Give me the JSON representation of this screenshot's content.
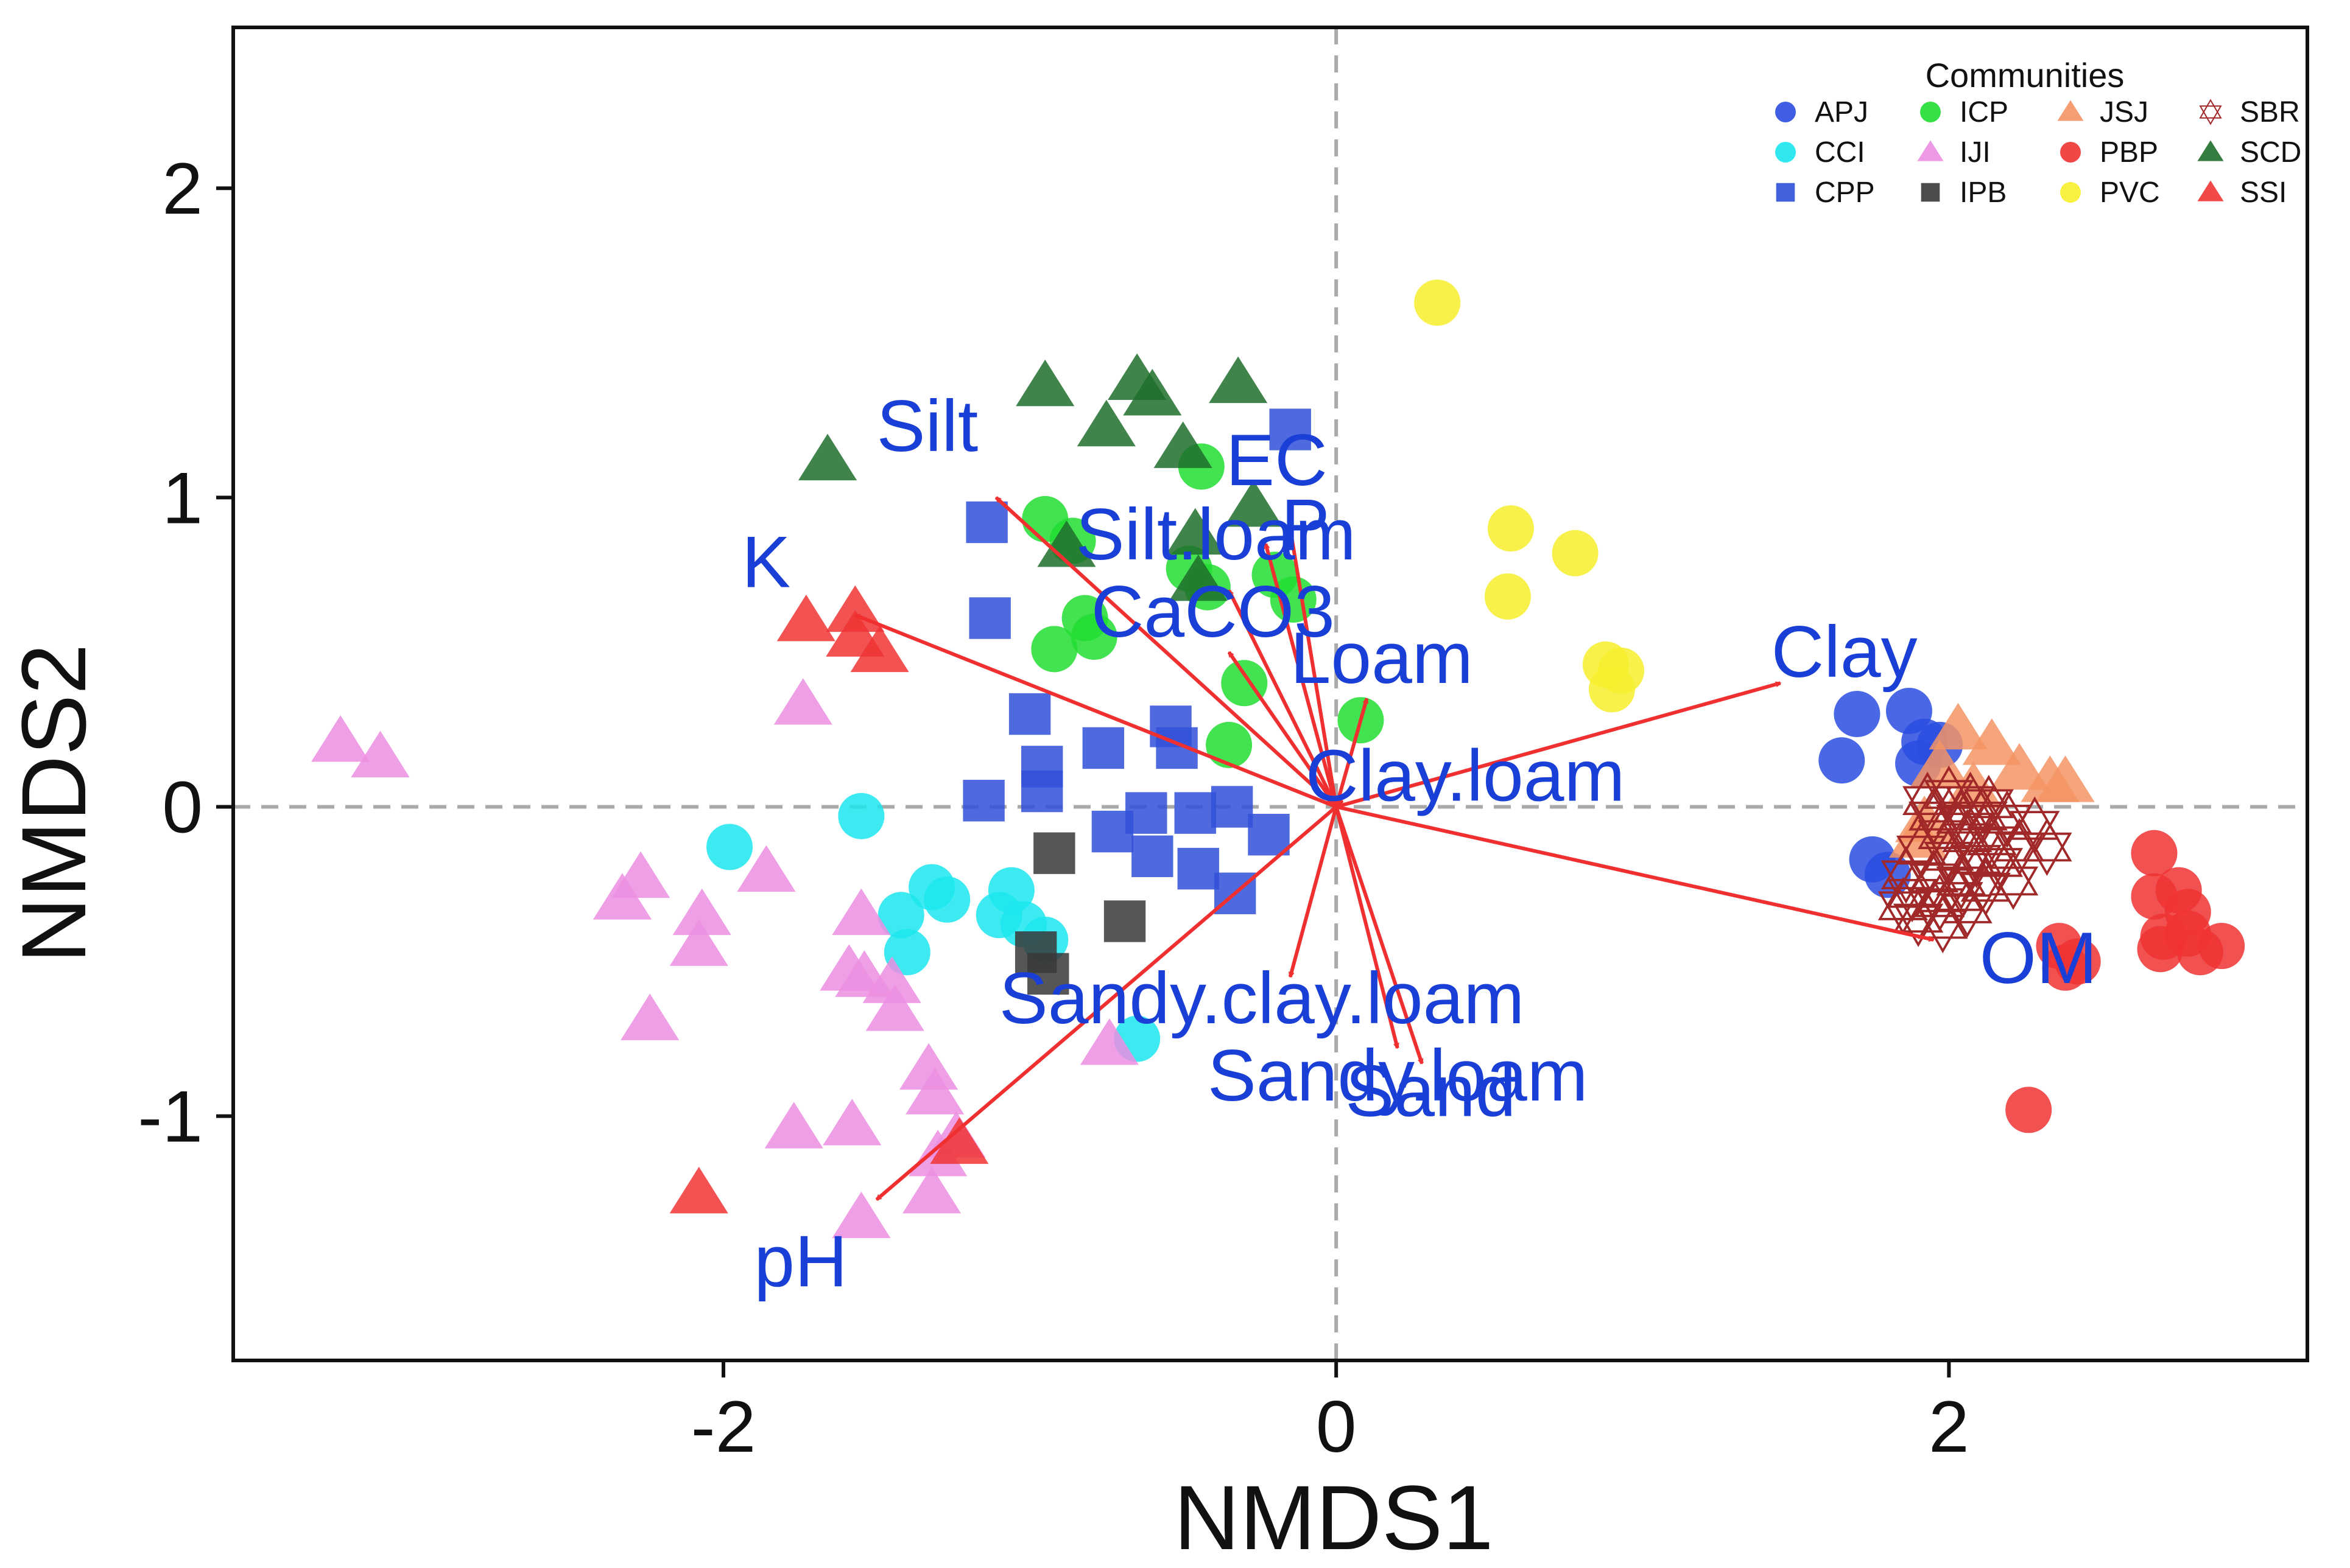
{
  "chart_data": {
    "type": "scatter",
    "subtype": "nmds-biplot",
    "xlabel": "NMDS1",
    "ylabel": "NMDS2",
    "xlim": [
      -3.6,
      3.17
    ],
    "ylim": [
      -1.79,
      2.52
    ],
    "xticks": [
      -2,
      0,
      2
    ],
    "yticks": [
      -1,
      0,
      1,
      2
    ],
    "x_tick_labels": [
      "-2",
      "0",
      "2"
    ],
    "y_tick_labels": [
      "-1",
      "0",
      "1",
      "2"
    ],
    "reference_lines": {
      "x": 0,
      "y": 0,
      "style": "dashed",
      "color": "#aaaaaa"
    },
    "grid": false,
    "legend": {
      "title": "Communities",
      "position": "top-right",
      "columns": [
        [
          "APJ",
          "CCI",
          "CPP"
        ],
        [
          "ICP",
          "IJI",
          "IPB"
        ],
        [
          "JSJ",
          "PBP",
          "PVC"
        ],
        [
          "SBR",
          "SCD",
          "SSI"
        ]
      ]
    },
    "colors": {
      "vector": "#f03030",
      "vector_label": "#1a3fd6",
      "axis_dashed": "#aaaaaa"
    },
    "series": [
      {
        "name": "APJ",
        "shape": "circle",
        "color": "#2a4de0",
        "points": [
          [
            1.7,
            0.3
          ],
          [
            1.87,
            0.31
          ],
          [
            1.65,
            0.15
          ],
          [
            1.92,
            0.21
          ],
          [
            1.97,
            0.2
          ],
          [
            1.9,
            0.14
          ],
          [
            1.75,
            -0.17
          ],
          [
            1.8,
            -0.22
          ]
        ]
      },
      {
        "name": "CCI",
        "shape": "circle",
        "color": "#1ce6ee",
        "points": [
          [
            -1.98,
            -0.13
          ],
          [
            -1.55,
            -0.03
          ],
          [
            -1.42,
            -0.35
          ],
          [
            -1.4,
            -0.47
          ],
          [
            -1.32,
            -0.26
          ],
          [
            -1.27,
            -0.3
          ],
          [
            -1.06,
            -0.27
          ],
          [
            -1.1,
            -0.35
          ],
          [
            -1.02,
            -0.38
          ],
          [
            -0.95,
            -0.43
          ],
          [
            -0.65,
            -0.75
          ]
        ]
      },
      {
        "name": "CPP",
        "shape": "square",
        "color": "#3050d8",
        "points": [
          [
            -0.15,
            1.22
          ],
          [
            -1.14,
            0.92
          ],
          [
            -1.13,
            0.61
          ],
          [
            -1,
            0.3
          ],
          [
            -0.96,
            0.13
          ],
          [
            -0.76,
            0.19
          ],
          [
            -0.54,
            0.26
          ],
          [
            -0.52,
            0.19
          ],
          [
            -1.15,
            0.02
          ],
          [
            -0.96,
            0.05
          ],
          [
            -0.73,
            -0.08
          ],
          [
            -0.62,
            -0.02
          ],
          [
            -0.46,
            -0.02
          ],
          [
            -0.34,
            0
          ],
          [
            -0.6,
            -0.16
          ],
          [
            -0.45,
            -0.2
          ],
          [
            -0.22,
            -0.09
          ],
          [
            -0.33,
            -0.28
          ]
        ]
      },
      {
        "name": "ICP",
        "shape": "circle",
        "color": "#22dd33",
        "points": [
          [
            -0.44,
            1.1
          ],
          [
            -0.95,
            0.93
          ],
          [
            -0.86,
            0.86
          ],
          [
            -0.48,
            0.77
          ],
          [
            -0.42,
            0.71
          ],
          [
            -0.82,
            0.61
          ],
          [
            -0.79,
            0.55
          ],
          [
            -0.92,
            0.51
          ],
          [
            -0.2,
            0.75
          ],
          [
            -0.14,
            0.67
          ],
          [
            -0.3,
            0.4
          ],
          [
            -0.35,
            0.2
          ],
          [
            0.08,
            0.28
          ]
        ]
      },
      {
        "name": "IJI",
        "shape": "triangle",
        "color": "#ec8ee2",
        "points": [
          [
            -3.25,
            0.21
          ],
          [
            -3.12,
            0.16
          ],
          [
            -1.74,
            0.33
          ],
          [
            -2.27,
            -0.23
          ],
          [
            -2.33,
            -0.3
          ],
          [
            -2.07,
            -0.35
          ],
          [
            -2.08,
            -0.45
          ],
          [
            -1.86,
            -0.21
          ],
          [
            -1.55,
            -0.35
          ],
          [
            -1.59,
            -0.53
          ],
          [
            -1.54,
            -0.55
          ],
          [
            -1.45,
            -0.57
          ],
          [
            -1.44,
            -0.66
          ],
          [
            -2.24,
            -0.69
          ],
          [
            -1.33,
            -0.85
          ],
          [
            -1.31,
            -0.93
          ],
          [
            -1.77,
            -1.04
          ],
          [
            -1.58,
            -1.03
          ],
          [
            -1.24,
            -1.07
          ],
          [
            -1.3,
            -1.13
          ],
          [
            -1.32,
            -1.25
          ],
          [
            -1.55,
            -1.33
          ],
          [
            -0.74,
            -0.77
          ]
        ]
      },
      {
        "name": "IPB",
        "shape": "square",
        "color": "#383838",
        "points": [
          [
            -0.92,
            -0.15
          ],
          [
            -0.69,
            -0.37
          ],
          [
            -0.98,
            -0.47
          ],
          [
            -0.94,
            -0.54
          ]
        ]
      },
      {
        "name": "JSJ",
        "shape": "triangle",
        "color": "#f59464",
        "points": [
          [
            2.03,
            0.25
          ],
          [
            2.14,
            0.2
          ],
          [
            2.23,
            0.12
          ],
          [
            2.33,
            0.08
          ],
          [
            2.38,
            0.08
          ],
          [
            1.97,
            0.13
          ],
          [
            2.08,
            0.06
          ],
          [
            1.92,
            -0.05
          ],
          [
            1.9,
            -0.1
          ]
        ]
      },
      {
        "name": "PBP",
        "shape": "circle",
        "color": "#f03232",
        "points": [
          [
            2.67,
            -0.15
          ],
          [
            2.75,
            -0.27
          ],
          [
            2.67,
            -0.29
          ],
          [
            2.78,
            -0.34
          ],
          [
            2.78,
            -0.41
          ],
          [
            2.7,
            -0.42
          ],
          [
            2.69,
            -0.46
          ],
          [
            2.82,
            -0.47
          ],
          [
            2.89,
            -0.45
          ],
          [
            2.36,
            -0.45
          ],
          [
            2.42,
            -0.5
          ],
          [
            2.38,
            -0.52
          ],
          [
            2.26,
            -0.98
          ]
        ]
      },
      {
        "name": "PVC",
        "shape": "circle",
        "color": "#f7ef2d",
        "points": [
          [
            0.33,
            1.63
          ],
          [
            0.57,
            0.9
          ],
          [
            0.78,
            0.82
          ],
          [
            0.56,
            0.68
          ],
          [
            0.88,
            0.46
          ],
          [
            0.93,
            0.44
          ],
          [
            0.9,
            0.38
          ]
        ]
      },
      {
        "name": "SBR",
        "shape": "hexagram",
        "color": "#a02828",
        "points": [
          [
            1.93,
            0.02
          ],
          [
            2,
            0.04
          ],
          [
            2.07,
            0.02
          ],
          [
            2.13,
            0.01
          ],
          [
            1.95,
            -0.03
          ],
          [
            2.04,
            -0.04
          ],
          [
            2.11,
            -0.03
          ],
          [
            2.19,
            -0.04
          ],
          [
            1.98,
            -0.09
          ],
          [
            2.06,
            -0.1
          ],
          [
            2.14,
            -0.11
          ],
          [
            2.23,
            -0.13
          ],
          [
            1.91,
            -0.14
          ],
          [
            2,
            -0.16
          ],
          [
            2.09,
            -0.17
          ],
          [
            2.16,
            -0.18
          ],
          [
            1.86,
            -0.22
          ],
          [
            1.95,
            -0.23
          ],
          [
            2.04,
            -0.24
          ],
          [
            2.12,
            -0.26
          ],
          [
            1.88,
            -0.28
          ],
          [
            1.97,
            -0.31
          ],
          [
            2.06,
            -0.33
          ],
          [
            1.9,
            -0.36
          ],
          [
            1.98,
            -0.38
          ],
          [
            2.21,
            -0.24
          ],
          [
            2.32,
            -0.13
          ],
          [
            2.28,
            -0.06
          ],
          [
            2.03,
            -0.29
          ],
          [
            1.85,
            -0.32
          ]
        ]
      },
      {
        "name": "SCD",
        "shape": "triangle",
        "color": "#1f6e2c",
        "points": [
          [
            -1.66,
            1.12
          ],
          [
            -0.95,
            1.36
          ],
          [
            -0.65,
            1.38
          ],
          [
            -0.6,
            1.33
          ],
          [
            -0.32,
            1.37
          ],
          [
            -0.75,
            1.23
          ],
          [
            -0.5,
            1.16
          ],
          [
            -0.46,
            0.88
          ],
          [
            -0.45,
            0.73
          ],
          [
            -0.88,
            0.84
          ],
          [
            -0.27,
            0.97
          ]
        ]
      },
      {
        "name": "SSI",
        "shape": "triangle",
        "color": "#f03434",
        "points": [
          [
            -1.57,
            0.63
          ],
          [
            -1.73,
            0.6
          ],
          [
            -1.57,
            0.55
          ],
          [
            -1.49,
            0.5
          ],
          [
            -1.23,
            -1.09
          ],
          [
            -2.08,
            -1.25
          ]
        ]
      }
    ],
    "vectors": [
      {
        "label": "Silt",
        "x": -1.11,
        "y": 1.0,
        "label_x": -1.5,
        "label_y": 1.15
      },
      {
        "label": "EC",
        "x": -0.15,
        "y": 0.9,
        "label_x": -0.36,
        "label_y": 1.04
      },
      {
        "label": "P",
        "x": -0.23,
        "y": 0.85,
        "label_x": -0.18,
        "label_y": 0.83
      },
      {
        "label": "Silt.loam",
        "x": -0.35,
        "y": 0.7,
        "label_x": -0.85,
        "label_y": 0.8
      },
      {
        "label": "K",
        "x": -1.57,
        "y": 0.62,
        "label_x": -1.94,
        "label_y": 0.71
      },
      {
        "label": "CaCO3",
        "x": -0.35,
        "y": 0.5,
        "label_x": -0.8,
        "label_y": 0.55
      },
      {
        "label": "Loam",
        "x": 0.1,
        "y": 0.35,
        "label_x": -0.15,
        "label_y": 0.4
      },
      {
        "label": "Clay",
        "x": 1.45,
        "y": 0.4,
        "label_x": 1.42,
        "label_y": 0.42
      },
      {
        "label": "Clay.loam",
        "x": 0.02,
        "y": 0.02,
        "label_x": -0.1,
        "label_y": 0.02
      },
      {
        "label": "OM",
        "x": 1.95,
        "y": -0.43,
        "label_x": 2.1,
        "label_y": -0.57
      },
      {
        "label": "Sandy.clay.loam",
        "x": -0.15,
        "y": -0.55,
        "label_x": -1.1,
        "label_y": -0.7
      },
      {
        "label": "Sandy.loam",
        "x": 0.2,
        "y": -0.78,
        "label_x": -0.42,
        "label_y": -0.95
      },
      {
        "label": "Sand",
        "x": 0.28,
        "y": -0.83,
        "label_x": 0.03,
        "label_y": -1.0
      },
      {
        "label": "pH",
        "x": -1.5,
        "y": -1.27,
        "label_x": -1.9,
        "label_y": -1.55
      }
    ]
  }
}
